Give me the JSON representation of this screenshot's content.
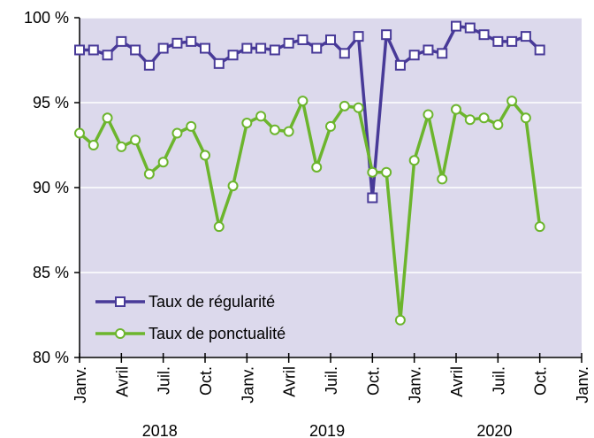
{
  "chart_data": {
    "type": "line",
    "x": [
      0,
      1,
      2,
      3,
      4,
      5,
      6,
      7,
      8,
      9,
      10,
      11,
      12,
      13,
      14,
      15,
      16,
      17,
      18,
      19,
      20,
      21,
      22,
      23,
      24,
      25,
      26,
      27,
      28,
      29,
      30,
      31,
      32,
      33
    ],
    "xlim": [
      0,
      36
    ],
    "xticks": [
      {
        "value": 0,
        "label": "Janv."
      },
      {
        "value": 3,
        "label": "Avril"
      },
      {
        "value": 6,
        "label": "Juil."
      },
      {
        "value": 9,
        "label": "Oct."
      },
      {
        "value": 12,
        "label": "Janv."
      },
      {
        "value": 15,
        "label": "Avril"
      },
      {
        "value": 18,
        "label": "Juil."
      },
      {
        "value": 21,
        "label": "Oct."
      },
      {
        "value": 24,
        "label": "Janv."
      },
      {
        "value": 27,
        "label": "Avril"
      },
      {
        "value": 30,
        "label": "Juil."
      },
      {
        "value": 33,
        "label": "Oct."
      },
      {
        "value": 36,
        "label": "Janv."
      }
    ],
    "years": [
      "2018",
      "2019",
      "2020"
    ],
    "ylim": [
      80,
      100
    ],
    "yticks": [
      {
        "value": 80,
        "label": "80 %"
      },
      {
        "value": 85,
        "label": "85 %"
      },
      {
        "value": 90,
        "label": "90 %"
      },
      {
        "value": 95,
        "label": "95 %"
      },
      {
        "value": 100,
        "label": "100 %"
      }
    ],
    "grid": true,
    "legend": "lower left",
    "series": [
      {
        "name": "Taux de régularité",
        "color": "#483a98",
        "marker": "square",
        "values": [
          98.1,
          98.1,
          97.8,
          98.6,
          98.1,
          97.2,
          98.2,
          98.5,
          98.6,
          98.2,
          97.3,
          97.8,
          98.2,
          98.2,
          98.1,
          98.5,
          98.7,
          98.2,
          98.7,
          97.9,
          98.9,
          89.4,
          99.0,
          97.2,
          97.8,
          98.1,
          97.9,
          99.5,
          99.4,
          99.0,
          98.6,
          98.6,
          98.9,
          98.1
        ]
      },
      {
        "name": "Taux de ponctualité",
        "color": "#6cb52d",
        "marker": "circle",
        "values": [
          93.2,
          92.5,
          94.1,
          92.4,
          92.8,
          90.8,
          91.5,
          93.2,
          93.6,
          91.9,
          87.7,
          90.1,
          93.8,
          94.2,
          93.4,
          93.3,
          95.1,
          91.2,
          93.6,
          94.8,
          94.7,
          90.9,
          90.9,
          82.2,
          91.6,
          94.3,
          90.5,
          94.6,
          94.0,
          94.1,
          93.7,
          95.1,
          94.1,
          87.7
        ]
      }
    ]
  }
}
